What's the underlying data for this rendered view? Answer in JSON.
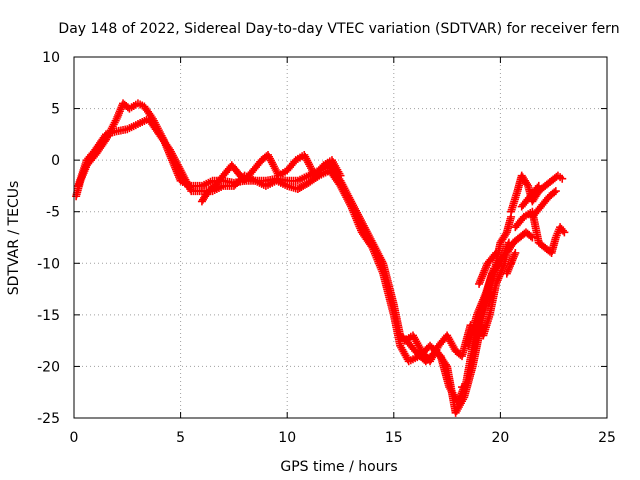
{
  "chart_data": {
    "type": "scatter",
    "title": "Day 148 of 2022, Sidereal Day-to-day VTEC variation (SDTVAR) for receiver fern",
    "xlabel": "GPS time / hours",
    "ylabel": "SDTVAR / TECUs",
    "xlim": [
      0,
      25
    ],
    "ylim": [
      -25,
      10
    ],
    "xticks": [
      "0",
      "5",
      "10",
      "15",
      "20",
      "25"
    ],
    "yticks": [
      "10",
      "5",
      "0",
      "-5",
      "-10",
      "-15",
      "-20",
      "-25"
    ],
    "grid": true,
    "marker": "plus",
    "color": "#ff0000",
    "series": [
      {
        "points": [
          [
            0.1,
            -3.5
          ],
          [
            0.3,
            -2.0
          ],
          [
            0.6,
            -0.5
          ],
          [
            1.0,
            0.5
          ],
          [
            1.5,
            2.0
          ],
          [
            2.0,
            4.0
          ],
          [
            2.3,
            5.5
          ],
          [
            2.6,
            5.0
          ],
          [
            3.0,
            5.5
          ],
          [
            3.3,
            5.2
          ],
          [
            3.7,
            4.0
          ],
          [
            4.2,
            2.0
          ],
          [
            4.6,
            0.0
          ],
          [
            5.0,
            -2.0
          ],
          [
            5.4,
            -2.5
          ],
          [
            6.0,
            -2.5
          ],
          [
            6.5,
            -2.0
          ],
          [
            7.0,
            -2.0
          ],
          [
            7.5,
            -2.2
          ],
          [
            8.0,
            -2.0
          ],
          [
            8.5,
            -2.0
          ],
          [
            9.0,
            -2.0
          ],
          [
            9.5,
            -1.8
          ],
          [
            10.0,
            -2.0
          ],
          [
            10.5,
            -2.0
          ],
          [
            11.0,
            -1.5
          ],
          [
            11.5,
            -1.0
          ],
          [
            12.0,
            -0.5
          ],
          [
            12.5,
            -2.0
          ],
          [
            13.0,
            -4.0
          ],
          [
            13.5,
            -6.0
          ],
          [
            14.0,
            -8.0
          ],
          [
            14.5,
            -10.0
          ],
          [
            15.0,
            -14.0
          ],
          [
            15.3,
            -17.0
          ],
          [
            15.6,
            -17.5
          ],
          [
            16.0,
            -18.5
          ],
          [
            16.5,
            -19.5
          ],
          [
            17.0,
            -18.5
          ],
          [
            17.5,
            -20.0
          ],
          [
            17.9,
            -24.5
          ],
          [
            18.3,
            -23.0
          ],
          [
            18.7,
            -20.0
          ],
          [
            19.2,
            -15.0
          ],
          [
            19.6,
            -12.0
          ],
          [
            20.0,
            -8.0
          ],
          [
            20.3,
            -7.0
          ],
          [
            20.5,
            -5.5
          ]
        ]
      },
      {
        "points": [
          [
            0.2,
            -2.5
          ],
          [
            0.6,
            0.0
          ],
          [
            1.0,
            1.0
          ],
          [
            1.5,
            2.5
          ],
          [
            2.0,
            2.8
          ],
          [
            2.5,
            3.0
          ],
          [
            3.0,
            3.5
          ],
          [
            3.5,
            4.0
          ],
          [
            4.0,
            2.5
          ],
          [
            4.5,
            1.0
          ],
          [
            5.0,
            -1.0
          ],
          [
            5.5,
            -3.0
          ],
          [
            6.0,
            -3.0
          ],
          [
            6.5,
            -3.0
          ],
          [
            7.0,
            -2.5
          ],
          [
            7.5,
            -2.5
          ],
          [
            8.0,
            -1.5
          ],
          [
            8.5,
            -2.0
          ],
          [
            9.0,
            -2.5
          ],
          [
            9.5,
            -2.0
          ],
          [
            10.0,
            -2.5
          ],
          [
            10.5,
            -2.8
          ],
          [
            11.0,
            -2.2
          ],
          [
            11.5,
            -1.5
          ],
          [
            12.0,
            -1.0
          ],
          [
            12.5,
            -2.5
          ],
          [
            13.0,
            -4.5
          ],
          [
            13.5,
            -7.0
          ],
          [
            14.0,
            -8.5
          ],
          [
            14.5,
            -11.0
          ],
          [
            15.0,
            -15.0
          ],
          [
            15.3,
            -18.0
          ],
          [
            15.7,
            -19.5
          ],
          [
            16.2,
            -19.0
          ],
          [
            16.7,
            -18.0
          ],
          [
            17.2,
            -19.0
          ],
          [
            17.6,
            -22.0
          ],
          [
            18.0,
            -23.5
          ],
          [
            18.4,
            -21.5
          ],
          [
            18.8,
            -17.0
          ],
          [
            19.2,
            -14.0
          ],
          [
            19.6,
            -11.0
          ],
          [
            20.0,
            -10.0
          ],
          [
            20.4,
            -8.0
          ]
        ]
      },
      {
        "points": [
          [
            6.0,
            -4.0
          ],
          [
            6.3,
            -3.0
          ],
          [
            6.6,
            -2.5
          ],
          [
            7.0,
            -1.5
          ],
          [
            7.4,
            -0.5
          ],
          [
            8.0,
            -2.0
          ],
          [
            8.4,
            -1.0
          ],
          [
            8.8,
            0.0
          ],
          [
            9.1,
            0.5
          ],
          [
            9.6,
            -1.5
          ],
          [
            10.0,
            -1.0
          ],
          [
            10.4,
            0.0
          ],
          [
            10.8,
            0.5
          ],
          [
            11.3,
            -1.5
          ],
          [
            11.7,
            -0.5
          ],
          [
            12.1,
            0.0
          ],
          [
            12.5,
            -1.5
          ],
          [
            15.5,
            -17.5
          ],
          [
            15.9,
            -17.0
          ],
          [
            16.3,
            -18.5
          ],
          [
            16.7,
            -19.5
          ],
          [
            17.1,
            -18.0
          ],
          [
            17.5,
            -17.0
          ],
          [
            17.9,
            -18.5
          ],
          [
            18.2,
            -19.0
          ],
          [
            18.6,
            -16.0
          ],
          [
            19.0,
            -12.0
          ],
          [
            19.4,
            -10.0
          ],
          [
            19.8,
            -9.0
          ],
          [
            18.2,
            -22.0
          ],
          [
            18.5,
            -18.0
          ],
          [
            18.9,
            -15.0
          ],
          [
            19.3,
            -13.0
          ],
          [
            19.7,
            -10.5
          ],
          [
            19.2,
            -17.0
          ],
          [
            19.5,
            -15.0
          ],
          [
            19.8,
            -12.0
          ],
          [
            20.2,
            -10.0
          ],
          [
            20.3,
            -9.0
          ],
          [
            20.6,
            -8.0
          ],
          [
            20.9,
            -7.5
          ],
          [
            21.2,
            -7.0
          ],
          [
            21.5,
            -7.5
          ],
          [
            20.5,
            -5.0
          ],
          [
            20.8,
            -3.0
          ],
          [
            21.0,
            -1.5
          ],
          [
            21.3,
            -2.5
          ],
          [
            21.5,
            -4.0
          ],
          [
            21.8,
            -3.0
          ],
          [
            22.1,
            -2.5
          ],
          [
            22.4,
            -2.0
          ],
          [
            22.7,
            -1.5
          ],
          [
            22.9,
            -1.8
          ],
          [
            21.0,
            -4.5
          ],
          [
            21.4,
            -3.5
          ],
          [
            21.8,
            -2.5
          ],
          [
            21.5,
            -5.5
          ],
          [
            21.9,
            -4.5
          ],
          [
            22.3,
            -3.5
          ],
          [
            22.6,
            -3.0
          ],
          [
            20.7,
            -6.5
          ],
          [
            21.1,
            -5.5
          ],
          [
            21.5,
            -5.0
          ],
          [
            21.8,
            -8.0
          ],
          [
            22.1,
            -8.5
          ],
          [
            22.4,
            -9.0
          ],
          [
            22.6,
            -7.5
          ],
          [
            22.8,
            -6.5
          ],
          [
            23.0,
            -7.0
          ],
          [
            20.5,
            -10.0
          ],
          [
            20.3,
            -11.0
          ],
          [
            20.7,
            -9.0
          ]
        ]
      }
    ]
  }
}
